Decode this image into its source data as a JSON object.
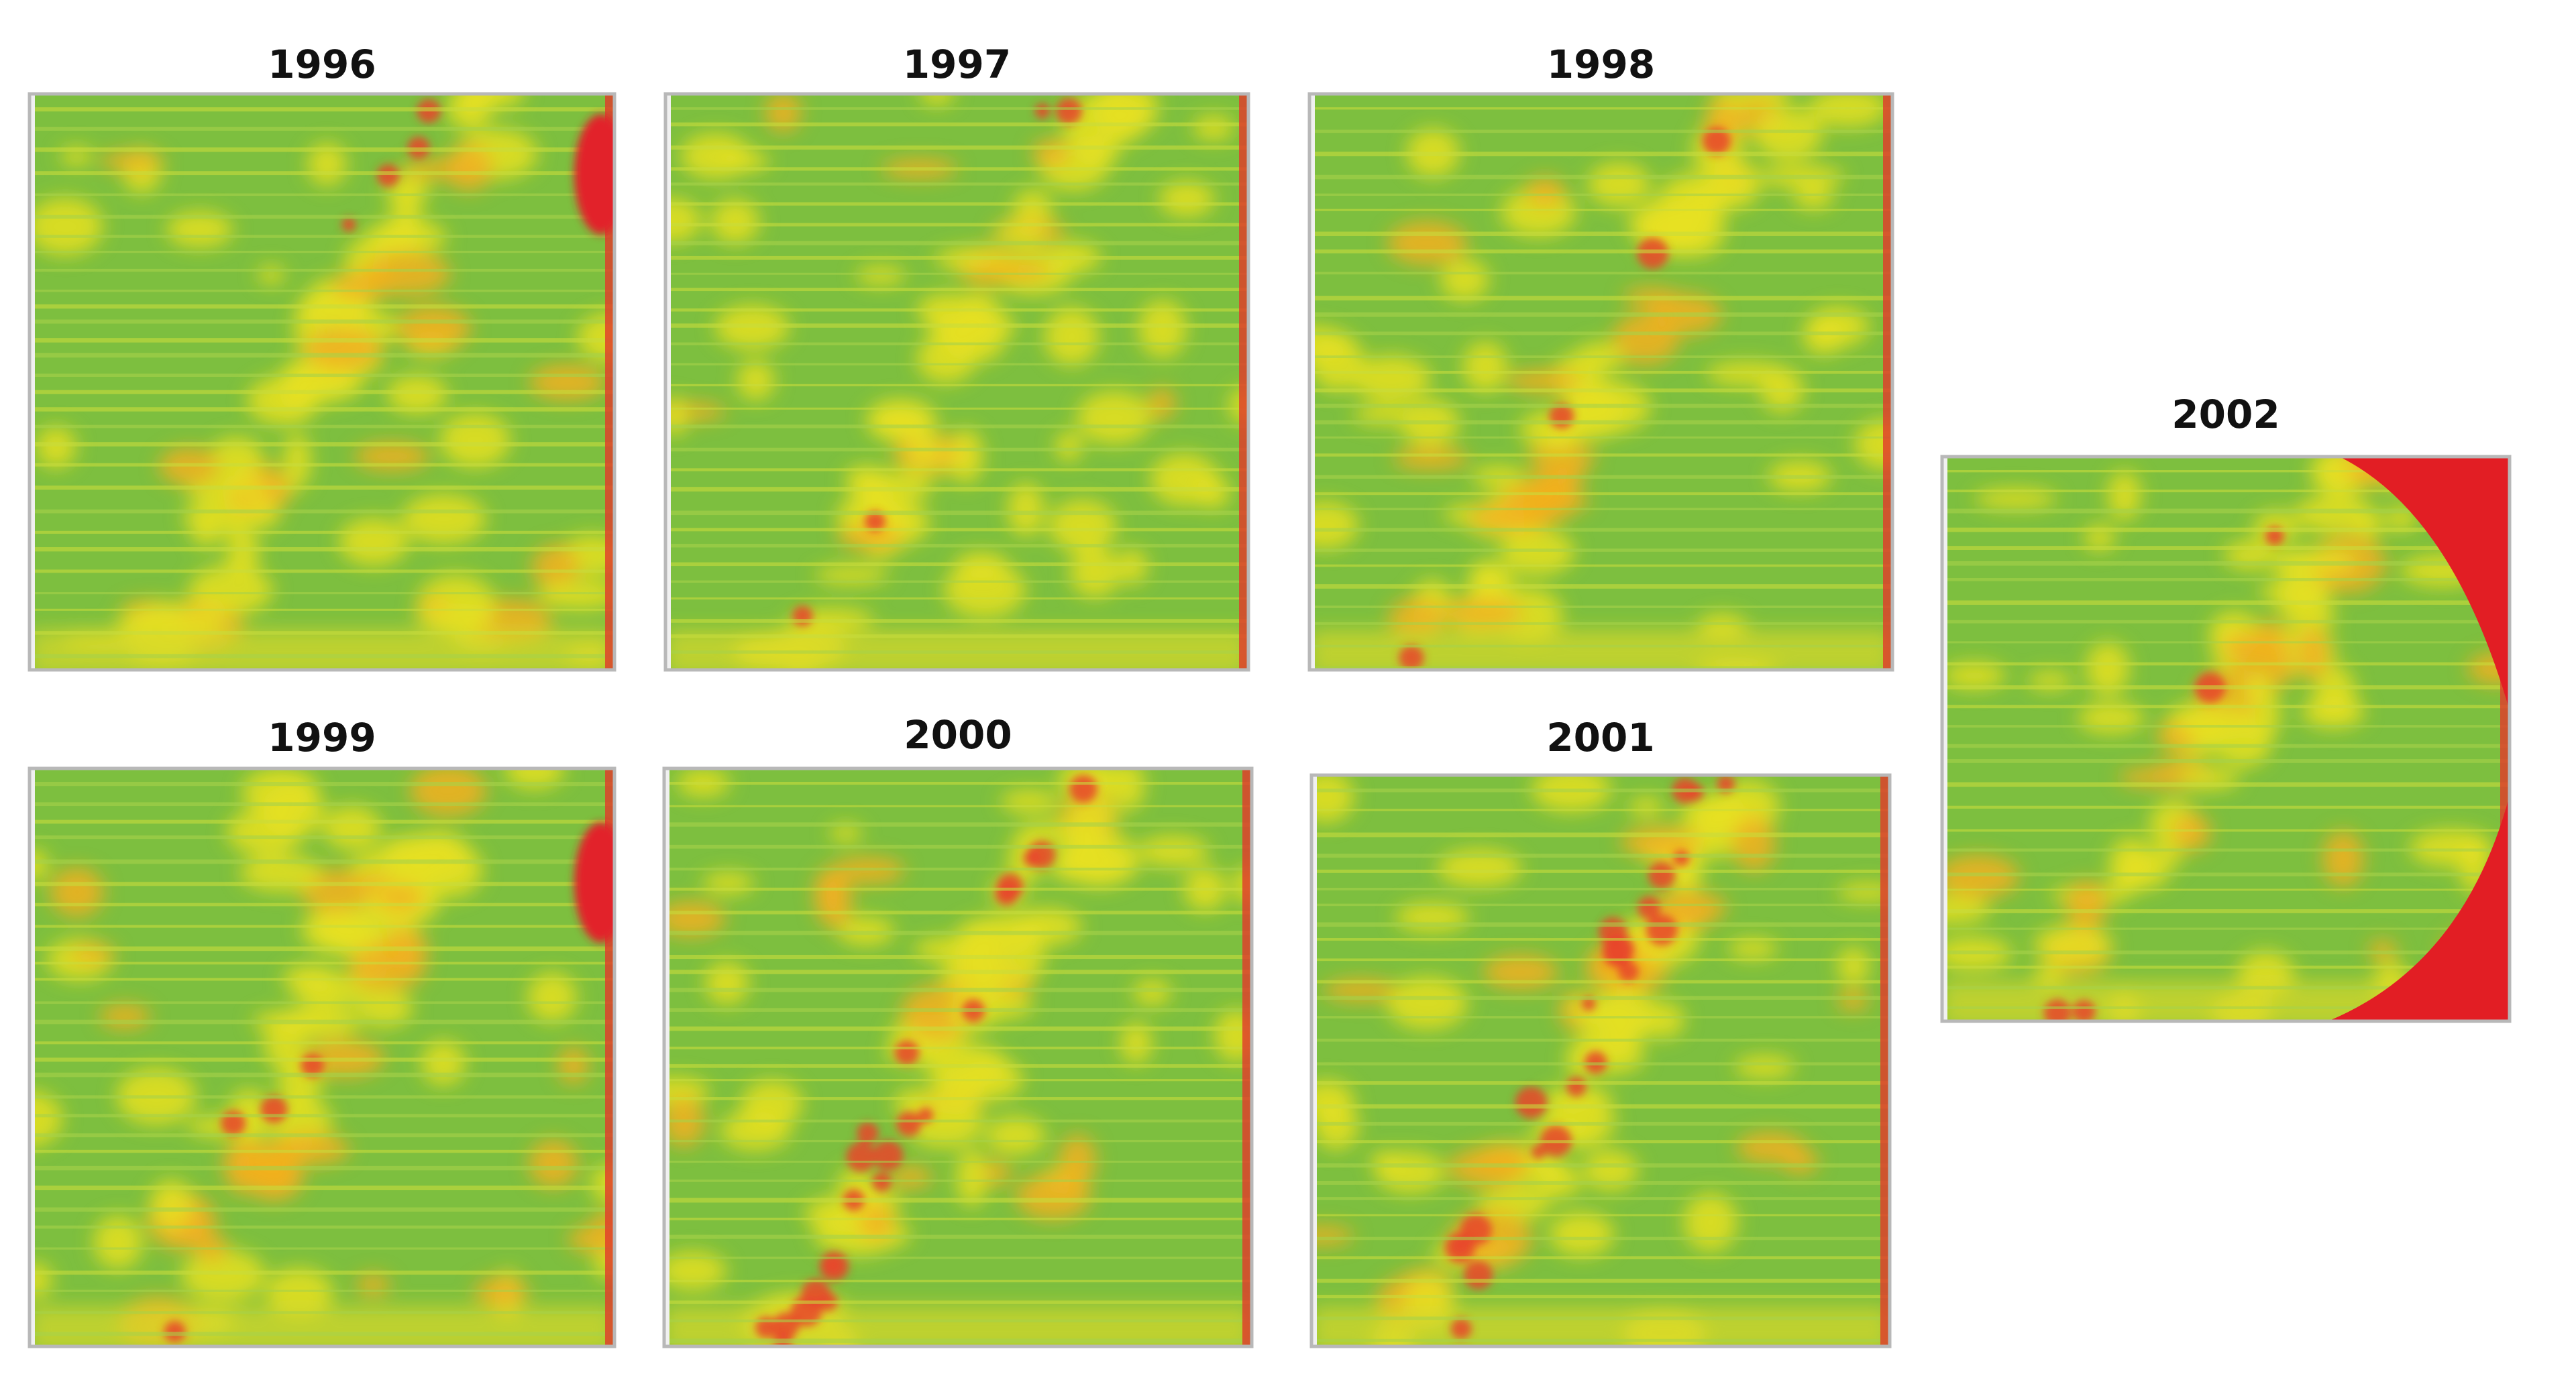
{
  "figure": {
    "panels": [
      {
        "title": "1996"
      },
      {
        "title": "1997"
      },
      {
        "title": "1998"
      },
      {
        "title": "1999"
      },
      {
        "title": "2000"
      },
      {
        "title": "2001"
      },
      {
        "title": "2002"
      }
    ]
  }
}
